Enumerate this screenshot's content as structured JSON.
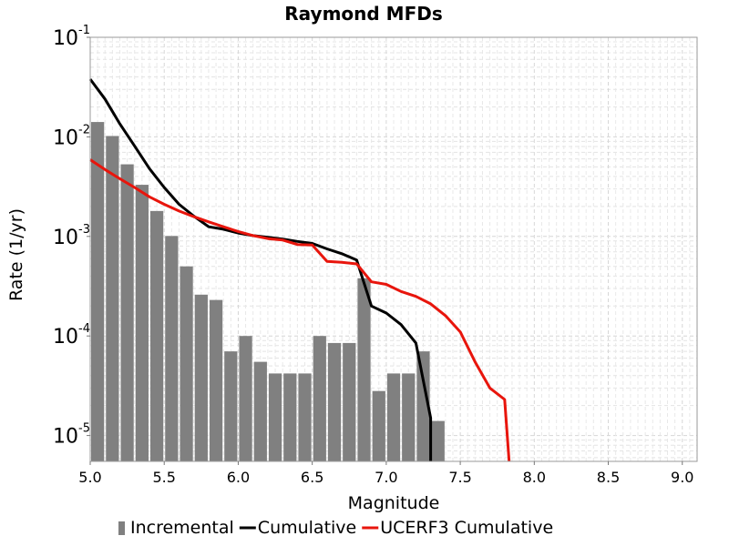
{
  "chart_data": {
    "type": "bar",
    "title": "Raymond MFDs",
    "xlabel": "Magnitude",
    "ylabel": "Rate (1/yr)",
    "xlim": [
      5.0,
      9.1
    ],
    "ylim": [
      5.5e-06,
      0.1
    ],
    "yscale": "log",
    "grid": true,
    "legend_placement": "bottom",
    "x_ticks": [
      "5.0",
      "5.5",
      "6.0",
      "6.5",
      "7.0",
      "7.5",
      "8.0",
      "8.5",
      "9.0"
    ],
    "y_ticks": [
      {
        "base": "10",
        "exp": "-1"
      },
      {
        "base": "10",
        "exp": "-2"
      },
      {
        "base": "10",
        "exp": "-3"
      },
      {
        "base": "10",
        "exp": "-4"
      },
      {
        "base": "10",
        "exp": "-5"
      }
    ],
    "series": [
      {
        "name": "Incremental",
        "kind": "bar",
        "color": "#808080",
        "x": [
          5.05,
          5.15,
          5.25,
          5.35,
          5.45,
          5.55,
          5.65,
          5.75,
          5.85,
          5.95,
          6.05,
          6.15,
          6.25,
          6.35,
          6.45,
          6.55,
          6.65,
          6.75,
          6.85,
          6.95,
          7.05,
          7.15,
          7.25,
          7.35
        ],
        "values": [
          0.0141,
          0.0102,
          0.0053,
          0.0033,
          0.0018,
          0.00101,
          0.0005,
          0.00026,
          0.00023,
          7e-05,
          0.0001,
          5.5e-05,
          4.2e-05,
          4.2e-05,
          4.2e-05,
          0.0001,
          8.5e-05,
          8.5e-05,
          0.00038,
          2.8e-05,
          4.2e-05,
          4.2e-05,
          7e-05,
          1.4e-05
        ]
      },
      {
        "name": "Cumulative",
        "kind": "line",
        "color": "#000000",
        "x": [
          5.0,
          5.1,
          5.2,
          5.3,
          5.4,
          5.5,
          5.6,
          5.7,
          5.8,
          5.9,
          6.0,
          6.1,
          6.2,
          6.3,
          6.4,
          6.5,
          6.6,
          6.7,
          6.8,
          6.9,
          7.0,
          7.1,
          7.2,
          7.3,
          7.3
        ],
        "values": [
          0.038,
          0.024,
          0.0135,
          0.0081,
          0.0048,
          0.0031,
          0.0021,
          0.0016,
          0.00125,
          0.00118,
          0.00108,
          0.00102,
          0.00098,
          0.00094,
          0.00089,
          0.00085,
          0.00075,
          0.00067,
          0.00058,
          0.0002,
          0.00017,
          0.00013,
          8.5e-05,
          1.5e-05,
          5.5e-06
        ]
      },
      {
        "name": "UCERF3 Cumulative",
        "kind": "line",
        "color": "#e8150c",
        "x": [
          5.0,
          5.1,
          5.2,
          5.3,
          5.4,
          5.5,
          5.6,
          5.7,
          5.8,
          5.9,
          6.0,
          6.1,
          6.2,
          6.3,
          6.4,
          6.5,
          6.6,
          6.7,
          6.8,
          6.9,
          7.0,
          7.1,
          7.2,
          7.3,
          7.4,
          7.5,
          7.6,
          7.7,
          7.8,
          7.83
        ],
        "values": [
          0.0059,
          0.0047,
          0.0038,
          0.0031,
          0.0025,
          0.0021,
          0.0018,
          0.00158,
          0.0014,
          0.00125,
          0.00112,
          0.00102,
          0.00095,
          0.00092,
          0.00083,
          0.00082,
          0.00056,
          0.00055,
          0.00053,
          0.00035,
          0.00033,
          0.00028,
          0.00025,
          0.00021,
          0.00016,
          0.00011,
          5.5e-05,
          3e-05,
          2.3e-05,
          5.5e-06
        ]
      }
    ]
  }
}
